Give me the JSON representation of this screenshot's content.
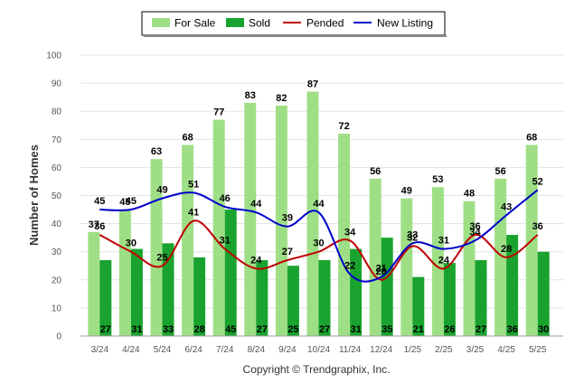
{
  "chart_data": {
    "type": "bar",
    "categories": [
      "3/24",
      "4/24",
      "5/24",
      "6/24",
      "7/24",
      "8/24",
      "9/24",
      "10/24",
      "11/24",
      "12/24",
      "1/25",
      "2/25",
      "3/25",
      "4/25",
      "5/25"
    ],
    "series": [
      {
        "name": "For Sale",
        "type": "bar",
        "color": "#9edf86",
        "values": [
          37,
          45,
          63,
          68,
          77,
          83,
          82,
          87,
          72,
          56,
          49,
          53,
          48,
          56,
          68
        ]
      },
      {
        "name": "Sold",
        "type": "bar",
        "color": "#19a32e",
        "values": [
          27,
          31,
          33,
          28,
          45,
          27,
          25,
          27,
          31,
          35,
          21,
          26,
          27,
          36,
          30
        ]
      },
      {
        "name": "Pended",
        "type": "line",
        "color": "#c00000",
        "values": [
          36,
          30,
          25,
          41,
          31,
          24,
          27,
          30,
          34,
          20,
          32,
          24,
          36,
          28,
          36
        ]
      },
      {
        "name": "New Listing",
        "type": "line",
        "color": "#0000cc",
        "values": [
          45,
          45,
          49,
          51,
          46,
          44,
          39,
          44,
          22,
          21,
          33,
          31,
          34,
          43,
          52
        ]
      }
    ],
    "xlabel": "",
    "ylabel": "Number of Homes",
    "ylim": [
      0,
      100
    ],
    "yticks": [
      0,
      10,
      20,
      30,
      40,
      50,
      60,
      70,
      80,
      90,
      100
    ],
    "grid": true,
    "legend_position": "top-center"
  },
  "footer": {
    "copyright": "Copyright © Trendgraphix, Inc."
  }
}
